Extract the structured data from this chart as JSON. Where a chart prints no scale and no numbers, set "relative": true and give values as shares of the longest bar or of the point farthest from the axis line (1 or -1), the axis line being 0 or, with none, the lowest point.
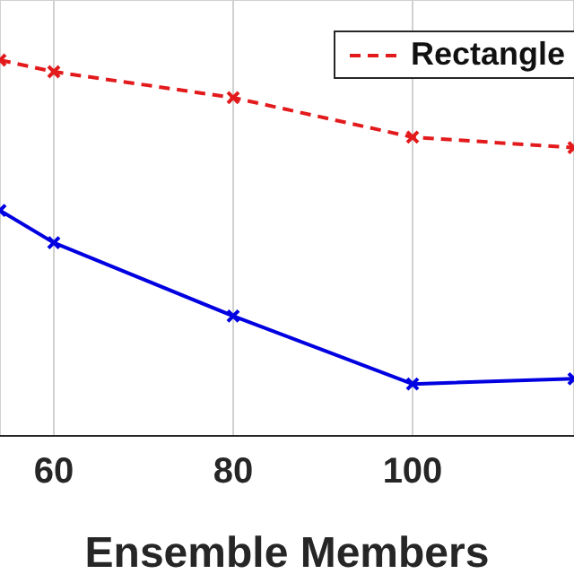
{
  "chart_data": {
    "type": "line",
    "xlabel": "Ensemble Members",
    "x": [
      54,
      60,
      80,
      100,
      118
    ],
    "xlim": [
      54,
      118
    ],
    "xticks": [
      60,
      80,
      100
    ],
    "relative": true,
    "grid": true,
    "legend": "top right",
    "marker": "cross",
    "series": [
      {
        "name": "Rectangle",
        "color": "#e31a1c",
        "line_style": "dashed",
        "values": [
          1,
          0.969,
          0.9,
          0.795,
          0.767
        ]
      },
      {
        "color": "#0000e0",
        "line_style": "solid",
        "values": [
          0.6,
          0.514,
          0.319,
          0.138,
          0.152
        ]
      }
    ]
  }
}
